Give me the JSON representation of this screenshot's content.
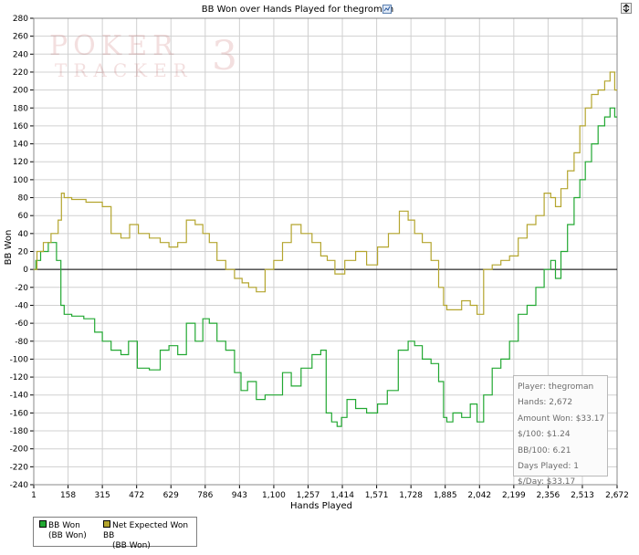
{
  "chart_data": {
    "type": "line",
    "title": "BB Won over Hands Played for thegroman",
    "xlabel": "Hands Played",
    "ylabel": "BB Won",
    "xlim": [
      1,
      2672
    ],
    "ylim": [
      -240,
      280
    ],
    "x_ticks": [
      1,
      158,
      315,
      472,
      629,
      786,
      943,
      1100,
      1257,
      1414,
      1571,
      1728,
      1885,
      2042,
      2199,
      2356,
      2513,
      2672
    ],
    "x_tick_labels": [
      "1",
      "158",
      "315",
      "472",
      "629",
      "786",
      "943",
      "1,100",
      "1,257",
      "1,414",
      "1,571",
      "1,728",
      "1,885",
      "2,042",
      "2,199",
      "2,356",
      "2,513",
      "2,672"
    ],
    "y_ticks": [
      -240,
      -220,
      -200,
      -180,
      -160,
      -140,
      -120,
      -100,
      -80,
      -60,
      -40,
      -20,
      0,
      20,
      40,
      60,
      80,
      100,
      120,
      140,
      160,
      180,
      200,
      220,
      240,
      260,
      280
    ],
    "grid": true,
    "series": [
      {
        "name": "BB Won",
        "color": "#22a832",
        "x": [
          1,
          20,
          45,
          90,
          120,
          130,
          150,
          200,
          260,
          300,
          330,
          380,
          420,
          450,
          500,
          560,
          600,
          640,
          680,
          720,
          760,
          790,
          820,
          860,
          900,
          940,
          960,
          1000,
          1040,
          1080,
          1120,
          1160,
          1200,
          1250,
          1300,
          1330,
          1350,
          1380,
          1400,
          1420,
          1450,
          1500,
          1550,
          1600,
          1640,
          1700,
          1730,
          1760,
          1800,
          1840,
          1870,
          1885,
          1900,
          1940,
          1980,
          2020,
          2042,
          2080,
          2120,
          2160,
          2199,
          2240,
          2280,
          2320,
          2356,
          2380,
          2400,
          2430,
          2460,
          2490,
          2513,
          2540,
          2570,
          2600,
          2630,
          2650,
          2672
        ],
        "values": [
          0,
          10,
          20,
          30,
          10,
          -40,
          -50,
          -52,
          -55,
          -70,
          -80,
          -90,
          -95,
          -80,
          -110,
          -112,
          -90,
          -85,
          -95,
          -60,
          -80,
          -55,
          -60,
          -80,
          -90,
          -115,
          -135,
          -125,
          -145,
          -140,
          -140,
          -115,
          -130,
          -110,
          -95,
          -90,
          -160,
          -170,
          -175,
          -165,
          -145,
          -155,
          -160,
          -150,
          -135,
          -90,
          -80,
          -85,
          -100,
          -105,
          -125,
          -165,
          -170,
          -160,
          -165,
          -150,
          -170,
          -140,
          -110,
          -100,
          -80,
          -50,
          -40,
          -20,
          0,
          10,
          -10,
          20,
          50,
          80,
          100,
          120,
          140,
          160,
          170,
          180,
          170
        ]
      },
      {
        "name": "Net Expected Won BB",
        "color": "#b4a52e",
        "x": [
          1,
          30,
          60,
          100,
          125,
          130,
          150,
          200,
          280,
          300,
          330,
          380,
          420,
          460,
          500,
          560,
          600,
          640,
          680,
          720,
          760,
          790,
          820,
          860,
          900,
          940,
          970,
          1000,
          1040,
          1080,
          1120,
          1160,
          1200,
          1250,
          1300,
          1330,
          1360,
          1400,
          1450,
          1500,
          1550,
          1600,
          1650,
          1700,
          1730,
          1760,
          1800,
          1840,
          1870,
          1885,
          1900,
          1940,
          1980,
          2020,
          2042,
          2080,
          2120,
          2160,
          2199,
          2240,
          2280,
          2320,
          2356,
          2380,
          2400,
          2430,
          2460,
          2490,
          2513,
          2540,
          2570,
          2600,
          2630,
          2650,
          2672
        ],
        "values": [
          0,
          20,
          30,
          40,
          55,
          85,
          80,
          78,
          75,
          75,
          70,
          40,
          35,
          50,
          40,
          35,
          30,
          25,
          30,
          55,
          50,
          40,
          30,
          10,
          0,
          -10,
          -15,
          -20,
          -25,
          0,
          10,
          30,
          50,
          40,
          30,
          15,
          10,
          -5,
          10,
          20,
          5,
          25,
          40,
          65,
          55,
          40,
          30,
          10,
          -20,
          -40,
          -45,
          -45,
          -35,
          -40,
          -50,
          0,
          5,
          10,
          15,
          35,
          50,
          60,
          85,
          80,
          70,
          90,
          110,
          130,
          160,
          180,
          195,
          200,
          210,
          220,
          200
        ]
      }
    ]
  },
  "stats": {
    "player": "Player: thegroman",
    "hands": "Hands: 2,672",
    "amount_won": "Amount Won: $33.17",
    "dollars_per_100": "$/100: $1.24",
    "bb_per_100": "BB/100: 6.21",
    "days_played": "Days Played: 1",
    "dollars_per_day": "$/Day: $33.17"
  },
  "legend": {
    "items": [
      {
        "name": "BB Won",
        "sub": "(BB Won)",
        "color": "#22a832"
      },
      {
        "name": "Net Expected Won BB",
        "sub": "(BB Won)",
        "color": "#b4a52e"
      }
    ]
  },
  "watermark": {
    "line1": "POKER",
    "line2": "TRACKER",
    "mark": "3"
  },
  "icons": {
    "title_icon": "chart-properties-icon",
    "top_right_icon": "scroll-arrows-icon"
  }
}
